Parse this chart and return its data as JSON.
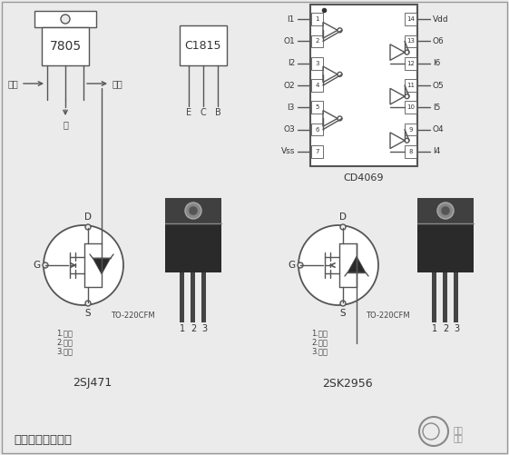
{
  "bg_color": "#ebebeb",
  "line_color": "#555555",
  "fill_dark": "#2a2a2a",
  "label_7805": "7805",
  "label_c1815": "C1815",
  "label_cd4069": "CD4069",
  "label_2sj471": "2SJ471",
  "label_2sk2956": "2SK2956",
  "label_input": "输入",
  "label_output": "输出",
  "label_ground": "地",
  "label_E": "E",
  "label_C": "C",
  "label_B": "B",
  "label_to220": "TO-220CFM",
  "label_gate": "1.栅极",
  "label_drain": "2.漏极",
  "label_source": "3.源极",
  "label_D": "D",
  "label_G": "G",
  "label_S": "S",
  "label_Vdd": "Vdd",
  "label_Vss": "Vss",
  "title_bottom": "逆变器所用元器件",
  "left_pins": [
    "I1",
    "O1",
    "I2",
    "O2",
    "I3",
    "O3",
    "Vss"
  ],
  "right_pins": [
    "Vdd",
    "O6",
    "I6",
    "O5",
    "I5",
    "O4",
    "I4"
  ],
  "right_pin_nums": [
    14,
    13,
    12,
    11,
    10,
    9,
    8
  ]
}
